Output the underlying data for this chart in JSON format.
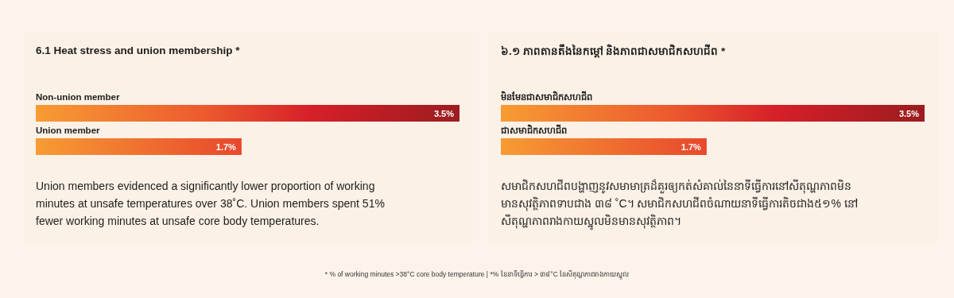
{
  "chart_data": [
    {
      "type": "bar",
      "orientation": "horizontal",
      "title": "6.1  Heat stress and union membership *",
      "categories": [
        "Non-union member",
        "Union member"
      ],
      "values": [
        3.5,
        1.7
      ],
      "colors": [
        "#9b1c1f",
        "#e8472c"
      ],
      "value_labels": [
        "3.5%",
        "1.7%"
      ],
      "annotations": [
        "Union members evidenced a significantly lower proportion of working minutes at unsafe temperatures over 38˚C. Union members spent 51% fewer working minutes at unsafe core body temperatures.",
        "*  % of working minutes >38°C core body temperature  |  *% នៃនាទីធ្វើការ > ៣៨°C នៃសីតុណ្ហភាពរាងកាយស្នូល"
      ]
    },
    {
      "type": "bar",
      "orientation": "horizontal",
      "title": "៦.១  ភាពតានតឹងនៃកម្តៅ និងភាពជាសមាជិកសហជីព *",
      "categories": [
        "មិនមែនជាសមាជិកសហជីព",
        "ជាសមាជិកសហជីព"
      ],
      "values": [
        3.5,
        1.7
      ],
      "colors": [
        "#9b1c1f",
        "#e8472c"
      ],
      "value_labels": [
        "3.5%",
        "1.7%"
      ],
      "annotations": [
        "សមាជិកសហជីពបង្ហាញនូវសមាមាត្រដ៏គួរឲ្យកត់សំគាល់នៃនាទីធ្វើការនៅសីតុណ្ហភាពមិនមានសុវត្ថិភាពទាបជាង ៣៨ ˚C។ សមាជិកសហជីពចំណាយនាទីធ្វើការតិចជាង៥១% នៅសីតុណ្ហភាពរាងកាយស្នូលមិនមានសុវត្ថិភាព។"
      ]
    }
  ]
}
